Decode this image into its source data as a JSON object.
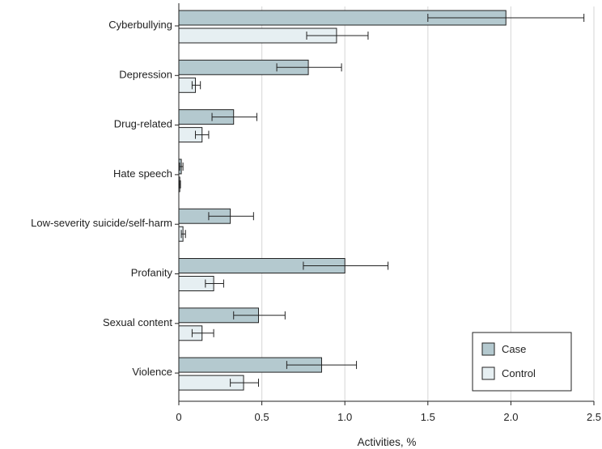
{
  "chart_data": {
    "type": "bar",
    "orientation": "horizontal",
    "xlabel": "Activities, %",
    "xlim": [
      0,
      2.5
    ],
    "xticks": [
      "0",
      "0.5",
      "1.0",
      "1.5",
      "2.0",
      "2.5"
    ],
    "grid": "vertical",
    "legend_position": "bottom-right",
    "categories": [
      "Cyberbullying",
      "Depression",
      "Drug-related",
      "Hate speech",
      "Low-severity suicide/self-harm",
      "Profanity",
      "Sexual content",
      "Violence"
    ],
    "series": [
      {
        "name": "Case",
        "color": "#b4c9cf",
        "values": [
          1.97,
          0.78,
          0.33,
          0.015,
          0.31,
          1.0,
          0.48,
          0.86
        ],
        "error_low": [
          1.5,
          0.59,
          0.2,
          0.005,
          0.18,
          0.75,
          0.33,
          0.65
        ],
        "error_high": [
          2.44,
          0.98,
          0.47,
          0.025,
          0.45,
          1.26,
          0.64,
          1.07
        ]
      },
      {
        "name": "Control",
        "color": "#e6eff2",
        "values": [
          0.95,
          0.1,
          0.14,
          0.005,
          0.025,
          0.21,
          0.14,
          0.39
        ],
        "error_low": [
          0.77,
          0.08,
          0.1,
          0.002,
          0.015,
          0.16,
          0.08,
          0.31
        ],
        "error_high": [
          1.14,
          0.13,
          0.18,
          0.01,
          0.04,
          0.27,
          0.21,
          0.48
        ]
      }
    ]
  }
}
